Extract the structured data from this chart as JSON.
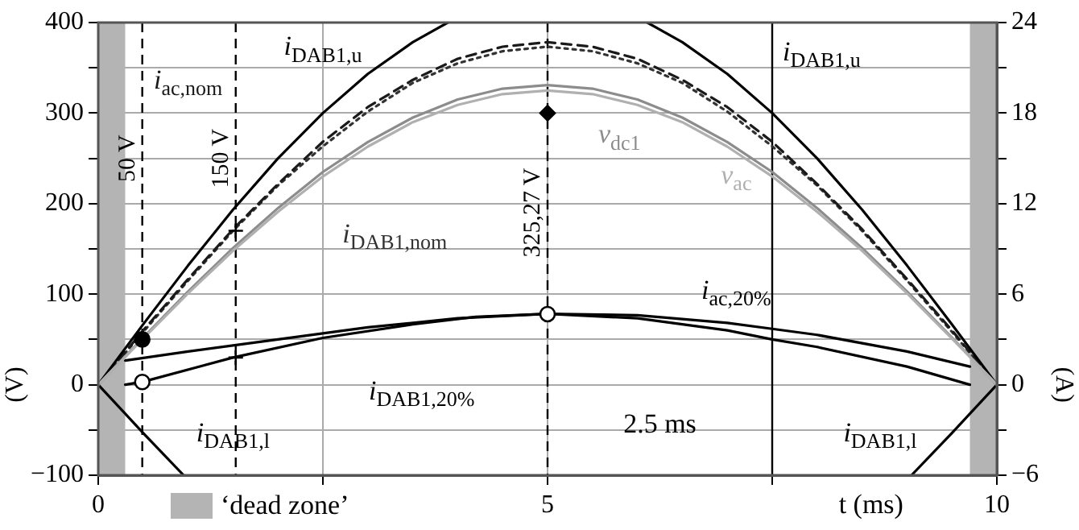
{
  "chart_data": {
    "type": "line",
    "xlabel": "t (ms)",
    "ylabel": "(V)",
    "y2label": "(A)",
    "xlim": [
      0,
      10
    ],
    "xticks": [
      0,
      {
        "value": 2.5,
        "label": null
      },
      5,
      {
        "value": 7.5,
        "label": null
      },
      10
    ],
    "ylim": [
      -100,
      400
    ],
    "yticks": [
      {
        "value": -100,
        "label": "−100"
      },
      {
        "value": -50,
        "label": null
      },
      0,
      {
        "value": 50,
        "label": null
      },
      100,
      {
        "value": 150,
        "label": null
      },
      200,
      {
        "value": 250,
        "label": null
      },
      300,
      {
        "value": 350,
        "label": null
      },
      400
    ],
    "y2lim": [
      -6,
      24
    ],
    "y2ticks": [
      {
        "value": -6,
        "label": "−6"
      },
      {
        "value": -3,
        "label": null
      },
      0,
      {
        "value": 3,
        "label": null
      },
      6,
      {
        "value": 9,
        "label": null
      },
      12,
      {
        "value": 15,
        "label": null
      },
      18,
      {
        "value": 21,
        "label": null
      },
      24
    ],
    "grid": true,
    "legend": "bottom left",
    "series": [
      {
        "name": "v$_{ac}$",
        "axis": "y",
        "color": "#b0b0b0",
        "x": [
          0,
          0.5,
          1,
          1.5,
          2,
          2.5,
          3,
          3.5,
          4,
          4.5,
          5,
          5.5,
          6,
          6.5,
          7,
          7.5,
          8,
          8.5,
          9,
          9.5,
          10
        ],
        "values": [
          0,
          51,
          101,
          148,
          191,
          230,
          263,
          290,
          309,
          321,
          325,
          321,
          309,
          290,
          263,
          230,
          191,
          148,
          101,
          51,
          0
        ]
      },
      {
        "name": "v$_{dc1}$",
        "axis": "y",
        "color": "#8c8c8c",
        "x": [
          0,
          0.5,
          1,
          1.5,
          2,
          2.5,
          3,
          3.5,
          4,
          4.5,
          5,
          5.5,
          6,
          6.5,
          7,
          7.5,
          8,
          8.5,
          9,
          9.5,
          10
        ],
        "values": [
          0,
          52,
          103,
          151,
          195,
          235,
          268,
          295,
          315,
          327,
          331,
          327,
          315,
          295,
          268,
          235,
          195,
          151,
          103,
          52,
          0
        ]
      },
      {
        "name": "i$_{DAB1,u}$",
        "axis": "y2",
        "color": "#000000",
        "x": [
          0,
          0.5,
          1,
          1.5,
          2,
          2.5,
          3,
          3.5,
          3.8,
          3.89,
          5,
          6.11,
          6.2,
          6.5,
          7,
          7.5,
          8,
          8.5,
          9,
          9.5,
          10
        ],
        "values": [
          0,
          4.0,
          7.9,
          11.6,
          15.0,
          18.0,
          20.6,
          22.7,
          23.7,
          24,
          null,
          24,
          23.7,
          22.7,
          20.6,
          18.0,
          15.0,
          11.6,
          7.9,
          4.0,
          0
        ]
      },
      {
        "name": "i$_{ac,nom}$",
        "axis": "y2",
        "color": "#1a1a1a",
        "line_style": "dashed",
        "x": [
          0,
          0.5,
          1,
          1.5,
          2,
          2.5,
          3,
          3.5,
          4,
          4.5,
          5,
          5.5,
          6,
          6.5,
          7,
          7.5,
          8,
          8.5,
          9,
          9.5,
          10
        ],
        "values": [
          0,
          3.6,
          7.0,
          10.3,
          13.3,
          16.1,
          18.4,
          20.2,
          21.6,
          22.4,
          22.7,
          22.4,
          21.6,
          20.2,
          18.4,
          16.1,
          13.3,
          10.3,
          7.0,
          3.6,
          0
        ]
      },
      {
        "name": "i$_{DAB1,nom}$",
        "axis": "y2",
        "color": "#333333",
        "line_style": "dotted",
        "x": [
          0,
          0.5,
          1,
          1.5,
          2,
          2.5,
          3,
          3.5,
          4,
          4.5,
          5,
          5.5,
          6,
          6.5,
          7,
          7.5,
          8,
          8.5,
          9,
          9.5,
          10
        ],
        "values": [
          0,
          3.5,
          6.9,
          10.2,
          13.2,
          15.8,
          18.1,
          20.0,
          21.3,
          22.1,
          22.4,
          22.1,
          21.3,
          20.0,
          18.1,
          15.8,
          13.2,
          10.2,
          6.9,
          3.5,
          0
        ]
      },
      {
        "name": "i$_{ac,20%}$",
        "axis": "y2",
        "color": "#000000",
        "x": [
          0.3,
          1,
          2,
          3,
          4,
          5,
          6,
          7,
          7.5,
          8,
          9,
          9.7
        ],
        "values": [
          1.6,
          2.2,
          3.0,
          3.8,
          4.4,
          4.7,
          4.4,
          3.6,
          3.0,
          2.5,
          1.2,
          0
        ]
      },
      {
        "name": "i$_{DAB1,20%}$",
        "axis": "y2",
        "color": "#000000",
        "x": [
          0.3,
          0.5,
          1.5,
          2.5,
          3.5,
          4.2,
          5,
          6,
          7,
          7.5,
          8,
          9,
          9.7
        ],
        "values": [
          0,
          0.2,
          1.8,
          3.1,
          4.0,
          4.5,
          4.7,
          4.6,
          4.1,
          3.7,
          3.3,
          2.2,
          1.2
        ]
      },
      {
        "name": "i$_{DAB1,l}$",
        "axis": "y2",
        "color": "#000000",
        "x": [
          0,
          0.5,
          0.95,
          5,
          9.05,
          9.5,
          10
        ],
        "values": [
          0,
          -3.2,
          -6,
          null,
          -6,
          -3.2,
          0
        ]
      },
      {
        "type": "scatter",
        "axis": "y",
        "color": "#000000",
        "marker": "circle",
        "x": [
          0.49
        ],
        "values": [
          50
        ]
      },
      {
        "type": "scatter",
        "axis": "y",
        "color": "#000000",
        "marker": "cross",
        "x": [
          1.53
        ],
        "values": [
          170
        ]
      },
      {
        "type": "scatter",
        "axis": "y",
        "color": "#000000",
        "marker": "diamond",
        "x": [
          5
        ],
        "values": [
          300
        ]
      },
      {
        "type": "scatter",
        "axis": "y",
        "color": "#ffffff",
        "marker": "circle",
        "x": [
          0.49,
          5
        ],
        "values": [
          3,
          78
        ]
      },
      {
        "type": "scatter",
        "axis": "y",
        "color": "#000000",
        "marker": "cross",
        "x": [
          1.53
        ],
        "values": [
          30
        ]
      }
    ],
    "ref_lines": [
      {
        "axis": "x",
        "value": 0.49,
        "label": "50 V",
        "line_style": "dashed"
      },
      {
        "axis": "x",
        "value": 1.53,
        "label": "150 V",
        "line_style": "dashed"
      },
      {
        "axis": "x",
        "value": 5,
        "label": "325,27 V",
        "line_style": "dashed"
      },
      {
        "axis": "x",
        "value": 7.5,
        "label": null,
        "line_style": "solid"
      }
    ],
    "bands": [
      {
        "axis": "x",
        "from": 0,
        "to": 0.3,
        "label": "‘dead zone’",
        "color": "#b4b4b4"
      },
      {
        "axis": "x",
        "from": 9.7,
        "to": 10,
        "label": null,
        "color": "#b4b4b4"
      }
    ],
    "annotations": [
      "2.5 ms"
    ]
  }
}
